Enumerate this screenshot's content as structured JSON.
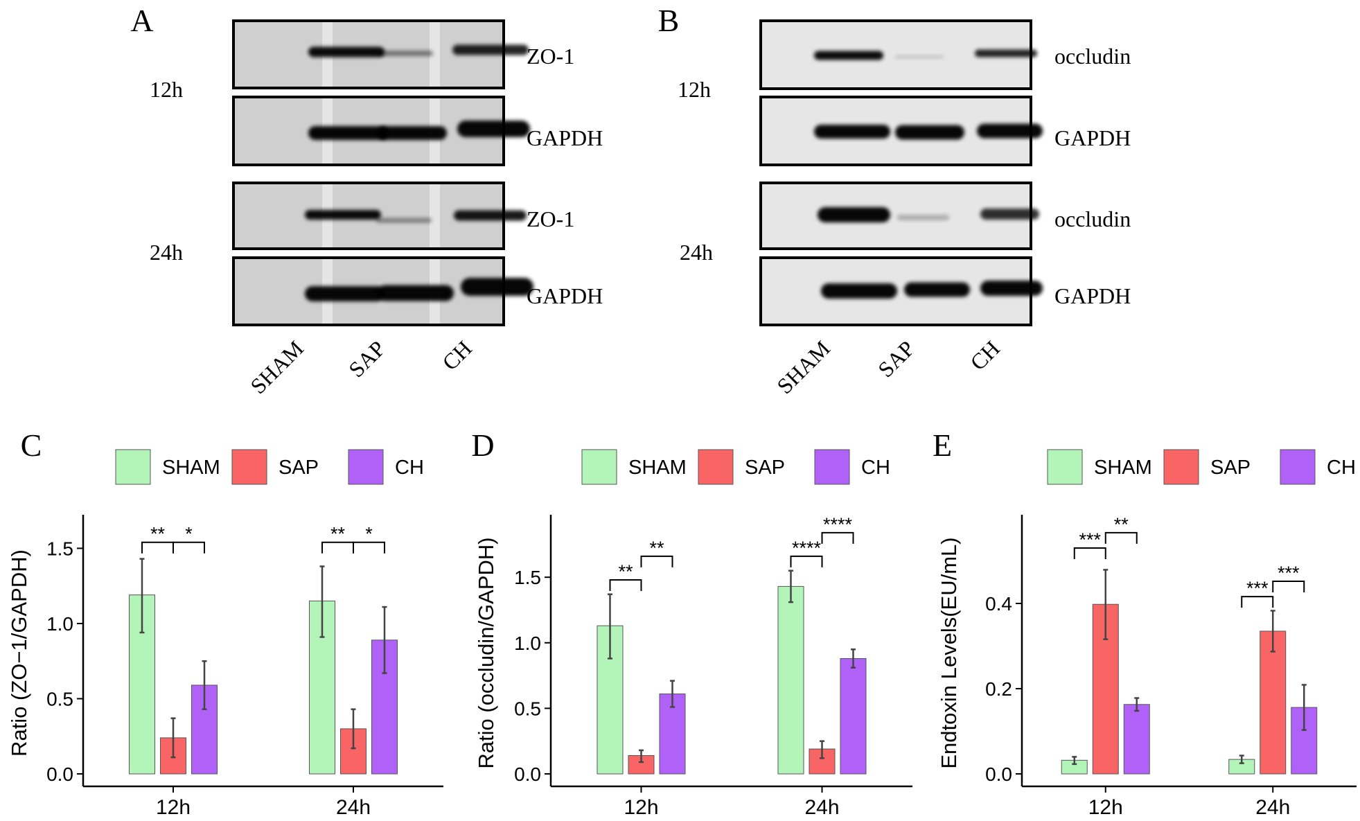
{
  "blots": {
    "A": {
      "letter": "A",
      "timepoints": [
        "12h",
        "24h"
      ],
      "markers": [
        "ZO-1",
        "GAPDH",
        "ZO-1",
        "GAPDH"
      ],
      "lanes": [
        "SHAM",
        "SAP",
        "CH"
      ]
    },
    "B": {
      "letter": "B",
      "timepoints": [
        "12h",
        "24h"
      ],
      "markers": [
        "occludin",
        "GAPDH",
        "occludin",
        "GAPDH"
      ],
      "lanes": [
        "SHAM",
        "SAP",
        "CH"
      ]
    }
  },
  "colors": {
    "SHAM": "#b3f5b9",
    "SAP": "#f96565",
    "CH": "#b062f8"
  },
  "chart_data": [
    {
      "panel": "C",
      "type": "bar",
      "ylabel": "Ratio (ZO−1/GAPDH)",
      "categories": [
        "12h",
        "24h"
      ],
      "ylim": [
        0,
        1.7
      ],
      "yticks": [
        "0.0",
        "0.5",
        "1.0",
        "1.5"
      ],
      "legend": {
        "position": "top",
        "entries": [
          "SHAM",
          "SAP",
          "CH"
        ]
      },
      "grid": false,
      "series": [
        {
          "name": "SHAM",
          "values": [
            1.19,
            1.15
          ],
          "err_low": [
            0.94,
            0.91
          ],
          "err_high": [
            1.43,
            1.38
          ]
        },
        {
          "name": "SAP",
          "values": [
            0.24,
            0.3
          ],
          "err_low": [
            0.11,
            0.17
          ],
          "err_high": [
            0.37,
            0.43
          ]
        },
        {
          "name": "CH",
          "values": [
            0.59,
            0.89
          ],
          "err_low": [
            0.43,
            0.67
          ],
          "err_high": [
            0.75,
            1.11
          ]
        }
      ],
      "significance": [
        {
          "group": "12h",
          "from": "SHAM",
          "to": "SAP",
          "label": "**",
          "y": 1.54
        },
        {
          "group": "12h",
          "from": "SAP",
          "to": "CH",
          "label": "*",
          "y": 1.54
        },
        {
          "group": "24h",
          "from": "SHAM",
          "to": "SAP",
          "label": "**",
          "y": 1.54
        },
        {
          "group": "24h",
          "from": "SAP",
          "to": "CH",
          "label": "*",
          "y": 1.54
        }
      ]
    },
    {
      "panel": "D",
      "type": "bar",
      "ylabel": "Ratio (occludin/GAPDH)",
      "categories": [
        "12h",
        "24h"
      ],
      "ylim": [
        0,
        1.95
      ],
      "yticks": [
        "0.0",
        "0.5",
        "1.0",
        "1.5"
      ],
      "legend": {
        "position": "top",
        "entries": [
          "SHAM",
          "SAP",
          "CH"
        ]
      },
      "grid": false,
      "series": [
        {
          "name": "SHAM",
          "values": [
            1.13,
            1.43
          ],
          "err_low": [
            0.88,
            1.31
          ],
          "err_high": [
            1.37,
            1.55
          ]
        },
        {
          "name": "SAP",
          "values": [
            0.14,
            0.19
          ],
          "err_low": [
            0.09,
            0.12
          ],
          "err_high": [
            0.18,
            0.25
          ]
        },
        {
          "name": "CH",
          "values": [
            0.61,
            0.88
          ],
          "err_low": [
            0.51,
            0.81
          ],
          "err_high": [
            0.71,
            0.95
          ]
        }
      ],
      "significance": [
        {
          "group": "12h",
          "from": "SHAM",
          "to": "SAP",
          "label": "**",
          "y": 1.48
        },
        {
          "group": "12h",
          "from": "SAP",
          "to": "CH",
          "label": "**",
          "y": 1.66
        },
        {
          "group": "24h",
          "from": "SHAM",
          "to": "SAP",
          "label": "****",
          "y": 1.66
        },
        {
          "group": "24h",
          "from": "SAP",
          "to": "CH",
          "label": "****",
          "y": 1.84
        }
      ]
    },
    {
      "panel": "E",
      "type": "bar",
      "ylabel": "Endtoxin Levels(EU/mL)",
      "categories": [
        "12h",
        "24h"
      ],
      "ylim": [
        0,
        0.6
      ],
      "yticks": [
        "0.0",
        "0.2",
        "0.4"
      ],
      "legend": {
        "position": "top",
        "entries": [
          "SHAM",
          "SAP",
          "CH"
        ]
      },
      "grid": false,
      "series": [
        {
          "name": "SHAM",
          "values": [
            0.032,
            0.034
          ],
          "err_low": [
            0.023,
            0.025
          ],
          "err_high": [
            0.04,
            0.043
          ]
        },
        {
          "name": "SAP",
          "values": [
            0.398,
            0.335
          ],
          "err_low": [
            0.316,
            0.287
          ],
          "err_high": [
            0.479,
            0.383
          ]
        },
        {
          "name": "CH",
          "values": [
            0.163,
            0.156
          ],
          "err_low": [
            0.148,
            0.103
          ],
          "err_high": [
            0.178,
            0.209
          ]
        }
      ],
      "significance": [
        {
          "group": "12h",
          "from": "SHAM",
          "to": "SAP",
          "label": "***",
          "y": 0.53
        },
        {
          "group": "12h",
          "from": "SAP",
          "to": "CH",
          "label": "**",
          "y": 0.566
        },
        {
          "group": "24h",
          "from": "SHAM",
          "to": "SAP",
          "label": "***",
          "y": 0.416
        },
        {
          "group": "24h",
          "from": "SAP",
          "to": "CH",
          "label": "***",
          "y": 0.452
        }
      ]
    }
  ]
}
